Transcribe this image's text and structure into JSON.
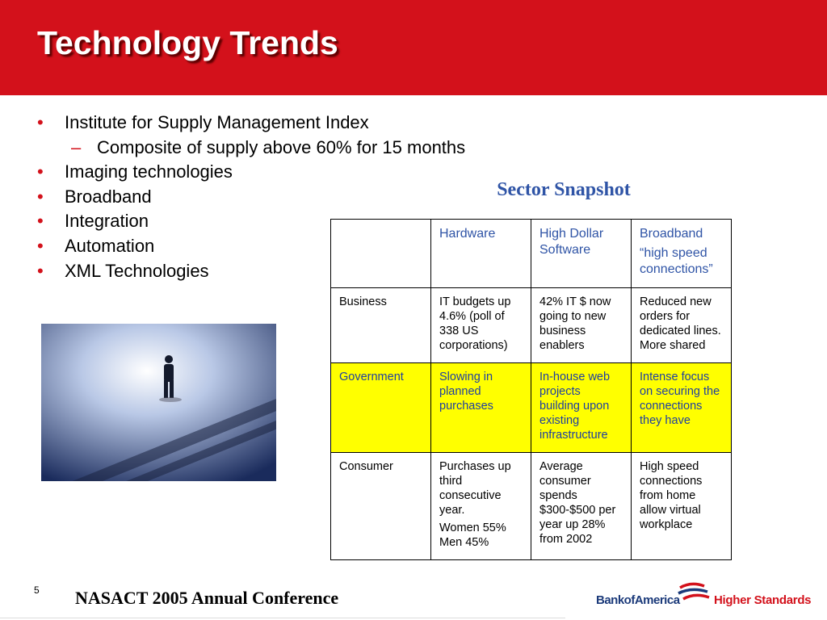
{
  "header": {
    "title": "Technology Trends"
  },
  "bullets": [
    {
      "text": "Institute for Supply Management Index",
      "level": 1
    },
    {
      "text": "Composite of supply above 60% for 15 months",
      "level": 2
    },
    {
      "text": "Imaging technologies",
      "level": 1
    },
    {
      "text": "Broadband",
      "level": 1
    },
    {
      "text": "Integration",
      "level": 1
    },
    {
      "text": "Automation",
      "level": 1
    },
    {
      "text": "XML Technologies",
      "level": 1
    }
  ],
  "table": {
    "caption": "Sector Snapshot",
    "columns": [
      [
        "Hardware"
      ],
      [
        "High Dollar Software"
      ],
      [
        "Broadband",
        "“high speed connections”"
      ]
    ],
    "rows": [
      {
        "label": "Business",
        "cells": [
          [
            "IT budgets up 4.6% (poll of 338 US corporations)"
          ],
          [
            "42% IT $ now going to new business enablers"
          ],
          [
            "Reduced new orders for dedicated lines. More shared"
          ]
        ]
      },
      {
        "label": "Government",
        "cells": [
          [
            "Slowing in planned purchases"
          ],
          [
            "In-house web projects building upon existing infrastructure"
          ],
          [
            "Intense focus on securing the connections they have"
          ]
        ]
      },
      {
        "label": "Consumer",
        "cells": [
          [
            "Purchases up third consecutive year.",
            "Women 55% Men 45%"
          ],
          [
            "Average consumer spends $300-$500 per year up 28% from 2002"
          ],
          [
            "High speed connections from home allow virtual workplace"
          ]
        ]
      }
    ]
  },
  "footer": {
    "page": "5",
    "conference": "NASACT 2005 Annual Conference",
    "logo": {
      "name": "BankofAmerica",
      "tagline": "Higher Standards"
    }
  }
}
